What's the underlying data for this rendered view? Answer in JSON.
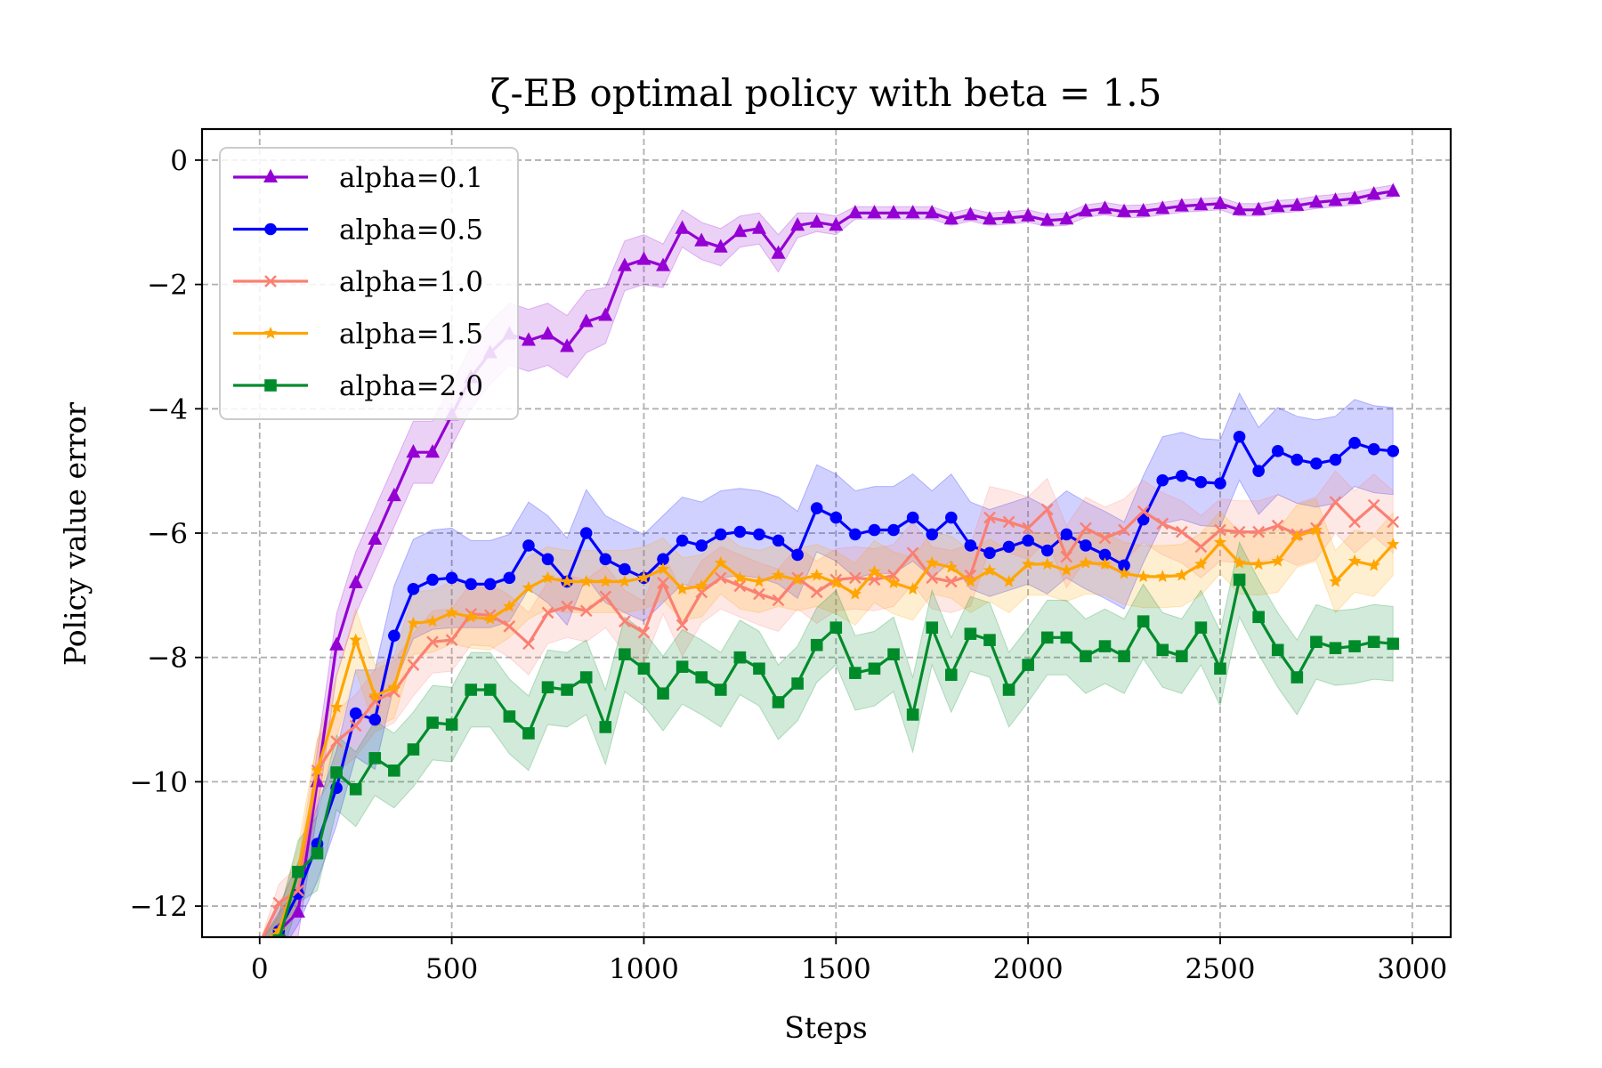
{
  "chart_data": {
    "type": "line",
    "title": "ζ-EB optimal policy with beta = 1.5",
    "xlabel": "Steps",
    "ylabel": "Policy value error",
    "xlim": [
      -150,
      3100
    ],
    "ylim": [
      -12.5,
      0.5
    ],
    "xticks": [
      0,
      500,
      1000,
      1500,
      2000,
      2500,
      3000
    ],
    "xtick_labels": [
      "0",
      "500",
      "1000",
      "1500",
      "2000",
      "2500",
      "3000"
    ],
    "yticks": [
      0,
      -2,
      -4,
      -6,
      -8,
      -10,
      -12
    ],
    "ytick_labels": [
      "0",
      "−2",
      "−4",
      "−6",
      "−8",
      "−10",
      "−12"
    ],
    "grid": true,
    "grid_style": "dashed",
    "legend_position": "upper left",
    "x": [
      0,
      50,
      100,
      150,
      200,
      250,
      300,
      350,
      400,
      450,
      500,
      550,
      600,
      650,
      700,
      750,
      800,
      850,
      900,
      950,
      1000,
      1050,
      1100,
      1150,
      1200,
      1250,
      1300,
      1350,
      1400,
      1450,
      1500,
      1550,
      1600,
      1650,
      1700,
      1750,
      1800,
      1850,
      1900,
      1950,
      2000,
      2050,
      2100,
      2150,
      2200,
      2250,
      2300,
      2350,
      2400,
      2450,
      2500,
      2550,
      2600,
      2650,
      2700,
      2750,
      2800,
      2850,
      2900,
      2950
    ],
    "series": [
      {
        "name": "alpha=0.1",
        "color": "#9400D3",
        "marker": "triangle",
        "band_width": [
          0,
          0.3,
          0.4,
          0.5,
          0.5,
          0.5,
          0.5,
          0.5,
          0.5,
          0.5,
          0.5,
          0.5,
          0.5,
          0.5,
          0.5,
          0.5,
          0.5,
          0.5,
          0.45,
          0.4,
          0.4,
          0.35,
          0.3,
          0.3,
          0.3,
          0.25,
          0.25,
          0.3,
          0.2,
          0.15,
          0.15,
          0.1,
          0.1,
          0.1,
          0.1,
          0.1,
          0.1,
          0.1,
          0.1,
          0.1,
          0.1,
          0.1,
          0.1,
          0.1,
          0.1,
          0.1,
          0.1,
          0.1,
          0.1,
          0.1,
          0.1,
          0.1,
          0.1,
          0.1,
          0.1,
          0.1,
          0.1,
          0.1,
          0.1,
          0.1
        ],
        "values": [
          -12.6,
          -12.4,
          -12.1,
          -10.0,
          -7.8,
          -6.8,
          -6.1,
          -5.4,
          -4.7,
          -4.7,
          -4.1,
          -3.5,
          -3.1,
          -2.8,
          -2.9,
          -2.8,
          -3.0,
          -2.6,
          -2.5,
          -1.7,
          -1.6,
          -1.7,
          -1.1,
          -1.3,
          -1.4,
          -1.15,
          -1.1,
          -1.5,
          -1.05,
          -1.0,
          -1.05,
          -0.85,
          -0.85,
          -0.85,
          -0.85,
          -0.85,
          -0.95,
          -0.88,
          -0.95,
          -0.93,
          -0.9,
          -0.97,
          -0.95,
          -0.82,
          -0.78,
          -0.83,
          -0.82,
          -0.78,
          -0.74,
          -0.72,
          -0.7,
          -0.8,
          -0.8,
          -0.75,
          -0.73,
          -0.68,
          -0.65,
          -0.62,
          -0.55,
          -0.5
        ]
      },
      {
        "name": "alpha=0.5",
        "color": "#0000FF",
        "marker": "circle",
        "band_width": [
          0,
          0.4,
          0.5,
          0.6,
          0.6,
          0.7,
          0.8,
          0.8,
          0.8,
          0.8,
          0.8,
          0.7,
          0.7,
          0.7,
          0.7,
          0.7,
          0.7,
          0.7,
          0.7,
          0.7,
          0.7,
          0.7,
          0.7,
          0.7,
          0.7,
          0.7,
          0.7,
          0.7,
          0.7,
          0.7,
          0.7,
          0.7,
          0.7,
          0.7,
          0.7,
          0.7,
          0.7,
          0.7,
          0.7,
          0.7,
          0.7,
          0.7,
          0.7,
          0.7,
          0.7,
          0.7,
          0.7,
          0.7,
          0.7,
          0.7,
          0.7,
          0.7,
          0.7,
          0.7,
          0.7,
          0.7,
          0.7,
          0.7,
          0.7,
          0.7
        ],
        "values": [
          -12.6,
          -12.4,
          -11.8,
          -11.0,
          -10.1,
          -8.9,
          -9.0,
          -7.65,
          -6.9,
          -6.75,
          -6.72,
          -6.82,
          -6.82,
          -6.72,
          -6.2,
          -6.42,
          -6.78,
          -6.0,
          -6.42,
          -6.58,
          -6.72,
          -6.42,
          -6.12,
          -6.2,
          -6.02,
          -5.98,
          -6.02,
          -6.12,
          -6.35,
          -5.6,
          -5.75,
          -6.02,
          -5.95,
          -5.95,
          -5.75,
          -6.02,
          -5.75,
          -6.2,
          -6.32,
          -6.22,
          -6.12,
          -6.28,
          -6.02,
          -6.2,
          -6.35,
          -6.52,
          -5.78,
          -5.15,
          -5.08,
          -5.18,
          -5.2,
          -4.45,
          -5.0,
          -4.68,
          -4.82,
          -4.88,
          -4.82,
          -4.55,
          -4.65,
          -4.68
        ]
      },
      {
        "name": "alpha=1.0",
        "color": "#FA8072",
        "marker": "x",
        "band_width": [
          0,
          0.3,
          0.4,
          0.5,
          0.5,
          0.5,
          0.5,
          0.5,
          0.5,
          0.5,
          0.5,
          0.5,
          0.5,
          0.5,
          0.5,
          0.5,
          0.5,
          0.5,
          0.5,
          0.5,
          0.5,
          0.5,
          0.5,
          0.5,
          0.5,
          0.5,
          0.5,
          0.5,
          0.5,
          0.5,
          0.5,
          0.5,
          0.5,
          0.5,
          0.5,
          0.5,
          0.5,
          0.5,
          0.5,
          0.5,
          0.5,
          0.5,
          0.5,
          0.5,
          0.5,
          0.5,
          0.5,
          0.5,
          0.5,
          0.5,
          0.5,
          0.5,
          0.5,
          0.5,
          0.5,
          0.5,
          0.5,
          0.5,
          0.5,
          0.5
        ],
        "values": [
          -12.6,
          -11.95,
          -11.75,
          -9.82,
          -9.35,
          -9.1,
          -8.7,
          -8.55,
          -8.12,
          -7.75,
          -7.72,
          -7.3,
          -7.32,
          -7.5,
          -7.78,
          -7.28,
          -7.18,
          -7.25,
          -7.02,
          -7.42,
          -7.6,
          -6.8,
          -7.48,
          -6.95,
          -6.72,
          -6.85,
          -6.98,
          -7.08,
          -6.72,
          -6.95,
          -6.75,
          -6.72,
          -6.75,
          -6.68,
          -6.32,
          -6.72,
          -6.78,
          -6.68,
          -5.75,
          -5.82,
          -5.92,
          -5.62,
          -6.38,
          -5.92,
          -6.08,
          -5.95,
          -5.65,
          -5.85,
          -5.98,
          -6.22,
          -5.95,
          -5.98,
          -5.98,
          -5.88,
          -6.02,
          -5.92,
          -5.5,
          -5.82,
          -5.55,
          -5.82
        ]
      },
      {
        "name": "alpha=1.5",
        "color": "#FFA500",
        "marker": "star",
        "band_width": [
          0,
          0.3,
          0.4,
          0.5,
          0.5,
          0.5,
          0.5,
          0.5,
          0.5,
          0.5,
          0.5,
          0.5,
          0.5,
          0.5,
          0.5,
          0.5,
          0.5,
          0.5,
          0.5,
          0.5,
          0.5,
          0.5,
          0.5,
          0.5,
          0.5,
          0.5,
          0.5,
          0.5,
          0.5,
          0.5,
          0.5,
          0.5,
          0.5,
          0.5,
          0.5,
          0.5,
          0.5,
          0.5,
          0.5,
          0.5,
          0.5,
          0.5,
          0.5,
          0.5,
          0.5,
          0.5,
          0.5,
          0.5,
          0.5,
          0.5,
          0.5,
          0.5,
          0.5,
          0.5,
          0.5,
          0.5,
          0.5,
          0.5,
          0.5,
          0.5
        ],
        "values": [
          -12.6,
          -12.4,
          -11.45,
          -9.82,
          -8.8,
          -7.72,
          -8.62,
          -8.48,
          -7.45,
          -7.42,
          -7.28,
          -7.35,
          -7.38,
          -7.18,
          -6.88,
          -6.72,
          -6.78,
          -6.78,
          -6.78,
          -6.78,
          -6.72,
          -6.58,
          -6.9,
          -6.85,
          -6.48,
          -6.72,
          -6.78,
          -6.68,
          -6.75,
          -6.68,
          -6.8,
          -6.98,
          -6.62,
          -6.8,
          -6.9,
          -6.48,
          -6.55,
          -6.78,
          -6.6,
          -6.78,
          -6.5,
          -6.5,
          -6.6,
          -6.48,
          -6.5,
          -6.65,
          -6.7,
          -6.7,
          -6.68,
          -6.5,
          -6.15,
          -6.48,
          -6.5,
          -6.45,
          -6.05,
          -5.95,
          -6.78,
          -6.45,
          -6.52,
          -6.18
        ]
      },
      {
        "name": "alpha=2.0",
        "color": "#008B2B",
        "marker": "square",
        "band_width": [
          0,
          0.4,
          0.5,
          0.6,
          0.6,
          0.6,
          0.6,
          0.6,
          0.6,
          0.6,
          0.6,
          0.6,
          0.6,
          0.6,
          0.6,
          0.6,
          0.6,
          0.6,
          0.6,
          0.6,
          0.6,
          0.6,
          0.6,
          0.6,
          0.6,
          0.6,
          0.6,
          0.6,
          0.6,
          0.6,
          0.6,
          0.6,
          0.6,
          0.6,
          0.6,
          0.6,
          0.6,
          0.6,
          0.6,
          0.6,
          0.6,
          0.6,
          0.6,
          0.6,
          0.6,
          0.6,
          0.6,
          0.6,
          0.6,
          0.6,
          0.6,
          0.6,
          0.6,
          0.6,
          0.6,
          0.6,
          0.6,
          0.6,
          0.6,
          0.6
        ],
        "values": [
          -12.6,
          -12.55,
          -11.45,
          -11.15,
          -9.85,
          -10.12,
          -9.62,
          -9.82,
          -9.48,
          -9.05,
          -9.08,
          -8.52,
          -8.52,
          -8.95,
          -9.22,
          -8.48,
          -8.52,
          -8.32,
          -9.12,
          -7.95,
          -8.18,
          -8.58,
          -8.15,
          -8.32,
          -8.52,
          -8.0,
          -8.18,
          -8.72,
          -8.42,
          -7.8,
          -7.52,
          -8.25,
          -8.18,
          -7.95,
          -8.92,
          -7.52,
          -8.28,
          -7.62,
          -7.72,
          -8.52,
          -8.12,
          -7.68,
          -7.68,
          -7.98,
          -7.82,
          -7.98,
          -7.42,
          -7.88,
          -7.98,
          -7.52,
          -8.18,
          -6.75,
          -7.35,
          -7.88,
          -8.32,
          -7.75,
          -7.85,
          -7.82,
          -7.75,
          -7.78
        ]
      }
    ]
  }
}
